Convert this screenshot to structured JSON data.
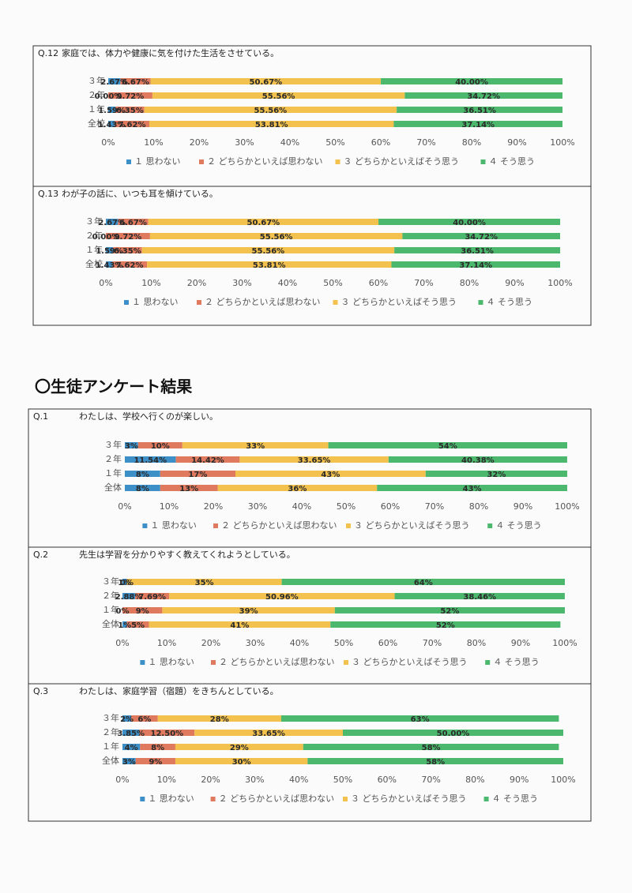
{
  "heading": "〇生徒アンケート結果",
  "chart_data": [
    {
      "type": "stacked_bar",
      "label": "Q.12",
      "title": "家庭では、体力や健康に気を付けた生活をさせている。",
      "categories": [
        "３年",
        "２年",
        "１年",
        "全校"
      ],
      "series": [
        {
          "name": "１ 思わない",
          "color": "#3d8fc7",
          "values": [
            2.67,
            0.0,
            1.59,
            1.43
          ],
          "value_labels": [
            "2.67%",
            "0.00%",
            "1.59%",
            "1.43%"
          ]
        },
        {
          "name": "２ どちらかといえば思わない",
          "color": "#e07a5f",
          "values": [
            6.67,
            9.72,
            6.35,
            7.62
          ],
          "value_labels": [
            "6.67%",
            "9.72%",
            "6.35%",
            "7.62%"
          ]
        },
        {
          "name": "３ どちらかといえばそう思う",
          "color": "#f2c14e",
          "values": [
            50.67,
            55.56,
            55.56,
            53.81
          ],
          "value_labels": [
            "50.67%",
            "55.56%",
            "55.56%",
            "53.81%"
          ]
        },
        {
          "name": "４ そう思う",
          "color": "#4cb86e",
          "values": [
            40.0,
            34.72,
            36.51,
            37.14
          ],
          "value_labels": [
            "40.00%",
            "34.72%",
            "36.51%",
            "37.14%"
          ]
        }
      ],
      "xlim": [
        0,
        100
      ],
      "xticks": [
        {
          "value": 0,
          "label": "0%"
        },
        {
          "value": 10,
          "label": "10%"
        },
        {
          "value": 20,
          "label": "20%"
        },
        {
          "value": 30,
          "label": "30%"
        },
        {
          "value": 40,
          "label": "40%"
        },
        {
          "value": 50,
          "label": "50%"
        },
        {
          "value": 60,
          "label": "60%"
        },
        {
          "value": 70,
          "label": "70%"
        },
        {
          "value": 80,
          "label": "80%"
        },
        {
          "value": 90,
          "label": "90%"
        },
        {
          "value": 100,
          "label": "100%"
        }
      ]
    },
    {
      "type": "stacked_bar",
      "label": "Q.13",
      "title": "わが子の話に、いつも耳を傾けている。",
      "categories": [
        "３年",
        "２年",
        "１年",
        "全校"
      ],
      "series": [
        {
          "name": "１ 思わない",
          "color": "#3d8fc7",
          "values": [
            2.67,
            0.0,
            1.59,
            1.43
          ],
          "value_labels": [
            "2.67%",
            "0.00%",
            "1.59%",
            "1.43%"
          ]
        },
        {
          "name": "２ どちらかといえば思わない",
          "color": "#e07a5f",
          "values": [
            6.67,
            9.72,
            6.35,
            7.62
          ],
          "value_labels": [
            "6.67%",
            "9.72%",
            "6.35%",
            "7.62%"
          ]
        },
        {
          "name": "３ どちらかといえばそう思う",
          "color": "#f2c14e",
          "values": [
            50.67,
            55.56,
            55.56,
            53.81
          ],
          "value_labels": [
            "50.67%",
            "55.56%",
            "55.56%",
            "53.81%"
          ]
        },
        {
          "name": "４ そう思う",
          "color": "#4cb86e",
          "values": [
            40.0,
            34.72,
            36.51,
            37.14
          ],
          "value_labels": [
            "40.00%",
            "34.72%",
            "36.51%",
            "37.14%"
          ]
        }
      ],
      "xlim": [
        0,
        100
      ],
      "xticks": [
        {
          "value": 0,
          "label": "0%"
        },
        {
          "value": 10,
          "label": "10%"
        },
        {
          "value": 20,
          "label": "20%"
        },
        {
          "value": 30,
          "label": "30%"
        },
        {
          "value": 40,
          "label": "40%"
        },
        {
          "value": 50,
          "label": "50%"
        },
        {
          "value": 60,
          "label": "60%"
        },
        {
          "value": 70,
          "label": "70%"
        },
        {
          "value": 80,
          "label": "80%"
        },
        {
          "value": 90,
          "label": "90%"
        },
        {
          "value": 100,
          "label": "100%"
        }
      ]
    },
    {
      "type": "stacked_bar",
      "label": "Q.1",
      "title": "わたしは、学校へ行くのが楽しい。",
      "categories": [
        "３年",
        "２年",
        "１年",
        "全体"
      ],
      "series": [
        {
          "name": "１ 思わない",
          "color": "#3d8fc7",
          "values": [
            3,
            11.54,
            8,
            8
          ],
          "value_labels": [
            "3%",
            "11.54%",
            "8%",
            "8%"
          ]
        },
        {
          "name": "２ どちらかといえば思わない",
          "color": "#e07a5f",
          "values": [
            10,
            14.42,
            17,
            13
          ],
          "value_labels": [
            "10%",
            "14.42%",
            "17%",
            "13%"
          ]
        },
        {
          "name": "３ どちらかといえばそう思う",
          "color": "#f2c14e",
          "values": [
            33,
            33.65,
            43,
            36
          ],
          "value_labels": [
            "33%",
            "33.65%",
            "43%",
            "36%"
          ]
        },
        {
          "name": "４ そう思う",
          "color": "#4cb86e",
          "values": [
            54,
            40.38,
            32,
            43
          ],
          "value_labels": [
            "54%",
            "40.38%",
            "32%",
            "43%"
          ]
        }
      ],
      "xlim": [
        0,
        100
      ],
      "xticks": [
        {
          "value": 0,
          "label": "0%"
        },
        {
          "value": 10,
          "label": "10%"
        },
        {
          "value": 20,
          "label": "20%"
        },
        {
          "value": 30,
          "label": "30%"
        },
        {
          "value": 40,
          "label": "40%"
        },
        {
          "value": 50,
          "label": "50%"
        },
        {
          "value": 60,
          "label": "60%"
        },
        {
          "value": 70,
          "label": "70%"
        },
        {
          "value": 80,
          "label": "80%"
        },
        {
          "value": 90,
          "label": "90%"
        },
        {
          "value": 100,
          "label": "100%"
        }
      ]
    },
    {
      "type": "stacked_bar",
      "label": "Q.2",
      "title": "先生は学習を分かりやすく教えてくれようとしている。",
      "categories": [
        "３年",
        "２年",
        "１年",
        "全体"
      ],
      "series": [
        {
          "name": "１ 思わない",
          "color": "#3d8fc7",
          "values": [
            1,
            2.88,
            0,
            1
          ],
          "value_labels": [
            "1%",
            "2.88%",
            "0%",
            "1%"
          ]
        },
        {
          "name": "２ どちらかといえば思わない",
          "color": "#e07a5f",
          "values": [
            0,
            7.69,
            9,
            5
          ],
          "value_labels": [
            "0%",
            "7.69%",
            "9%",
            "5%"
          ]
        },
        {
          "name": "３ どちらかといえばそう思う",
          "color": "#f2c14e",
          "values": [
            35,
            50.96,
            39,
            41
          ],
          "value_labels": [
            "35%",
            "50.96%",
            "39%",
            "41%"
          ]
        },
        {
          "name": "４ そう思う",
          "color": "#4cb86e",
          "values": [
            64,
            38.46,
            52,
            52
          ],
          "value_labels": [
            "64%",
            "38.46%",
            "52%",
            "52%"
          ]
        }
      ],
      "xlim": [
        0,
        100
      ],
      "xticks": [
        {
          "value": 0,
          "label": "0%"
        },
        {
          "value": 10,
          "label": "10%"
        },
        {
          "value": 20,
          "label": "20%"
        },
        {
          "value": 30,
          "label": "30%"
        },
        {
          "value": 40,
          "label": "40%"
        },
        {
          "value": 50,
          "label": "50%"
        },
        {
          "value": 60,
          "label": "60%"
        },
        {
          "value": 70,
          "label": "70%"
        },
        {
          "value": 80,
          "label": "80%"
        },
        {
          "value": 90,
          "label": "90%"
        },
        {
          "value": 100,
          "label": "100%"
        }
      ]
    },
    {
      "type": "stacked_bar",
      "label": "Q.3",
      "title": "わたしは、家庭学習（宿題）をきちんとしている。",
      "categories": [
        "３年",
        "２年",
        "１年",
        "全体"
      ],
      "series": [
        {
          "name": "１ 思わない",
          "color": "#3d8fc7",
          "values": [
            2,
            3.85,
            4,
            3
          ],
          "value_labels": [
            "2%",
            "3.85%",
            "4%",
            "3%"
          ]
        },
        {
          "name": "２ どちらかといえば思わない",
          "color": "#e07a5f",
          "values": [
            6,
            12.5,
            8,
            9
          ],
          "value_labels": [
            "6%",
            "12.50%",
            "8%",
            "9%"
          ]
        },
        {
          "name": "３ どちらかといえばそう思う",
          "color": "#f2c14e",
          "values": [
            28,
            33.65,
            29,
            30
          ],
          "value_labels": [
            "28%",
            "33.65%",
            "29%",
            "30%"
          ]
        },
        {
          "name": "４ そう思う",
          "color": "#4cb86e",
          "values": [
            63,
            50.0,
            58,
            58
          ],
          "value_labels": [
            "63%",
            "50.00%",
            "58%",
            "58%"
          ]
        }
      ],
      "xlim": [
        0,
        100
      ],
      "xticks": [
        {
          "value": 0,
          "label": "0%"
        },
        {
          "value": 10,
          "label": "10%"
        },
        {
          "value": 20,
          "label": "20%"
        },
        {
          "value": 30,
          "label": "30%"
        },
        {
          "value": 40,
          "label": "40%"
        },
        {
          "value": 50,
          "label": "50%"
        },
        {
          "value": 60,
          "label": "60%"
        },
        {
          "value": 70,
          "label": "70%"
        },
        {
          "value": 80,
          "label": "80%"
        },
        {
          "value": 90,
          "label": "90%"
        },
        {
          "value": 100,
          "label": "100%"
        }
      ]
    }
  ]
}
